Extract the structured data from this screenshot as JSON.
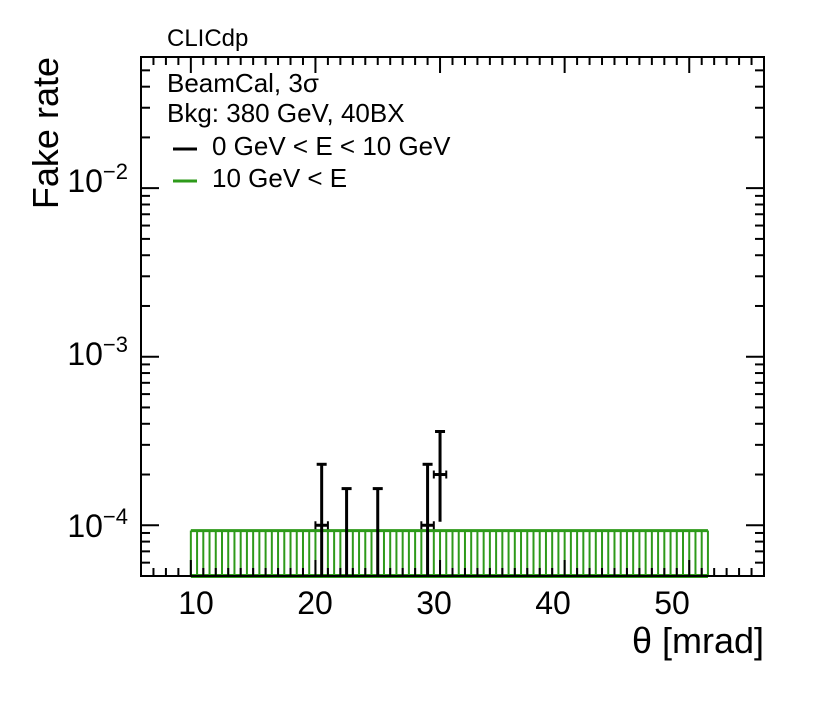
{
  "chart_data": {
    "type": "scatter",
    "title": "CLICdp",
    "xlabel": "θ [mrad]",
    "ylabel": "Fake rate",
    "yscale": "log",
    "xlim": [
      6,
      56
    ],
    "ylim": [
      5e-05,
      0.06
    ],
    "x_ticks": [
      "10",
      "20",
      "30",
      "40",
      "50"
    ],
    "x_tick_values": [
      10,
      20,
      30,
      40,
      50
    ],
    "y_ticks": [
      {
        "value": 0.01,
        "base": "10",
        "exp": "−2"
      },
      {
        "value": 0.001,
        "base": "10",
        "exp": "−3"
      },
      {
        "value": 0.0001,
        "base": "10",
        "exp": "−4"
      }
    ],
    "annotations": [
      "BeamCal, 3σ",
      "Bkg: 380 GeV, 40BX"
    ],
    "legend_position": "top-left",
    "series": [
      {
        "name": "0 GeV < E < 10 GeV",
        "color": "#000000",
        "style": "error-bars",
        "points": [
          {
            "x": 20.5,
            "y": 0.0001,
            "xerr": 0.5,
            "ylow": 5e-05,
            "yhigh": 0.00023
          },
          {
            "x": 22.5,
            "y": null,
            "xerr": 0,
            "ylow": 5e-05,
            "yhigh": 0.000165
          },
          {
            "x": 25.0,
            "y": null,
            "xerr": 0,
            "ylow": 5e-05,
            "yhigh": 0.000165
          },
          {
            "x": 29.0,
            "y": 0.0001,
            "xerr": 0.5,
            "ylow": 5e-05,
            "yhigh": 0.00023
          },
          {
            "x": 30.0,
            "y": 0.0002,
            "xerr": 0.5,
            "ylow": 0.000105,
            "yhigh": 0.00036
          }
        ]
      },
      {
        "name": "10 GeV < E",
        "color": "#2e9a1a",
        "style": "upper-limit-band",
        "x_start": 10,
        "x_end": 51.5,
        "bin_width": 0.5,
        "y_upper": 9.3e-05,
        "y_lower": 5e-05
      }
    ]
  }
}
